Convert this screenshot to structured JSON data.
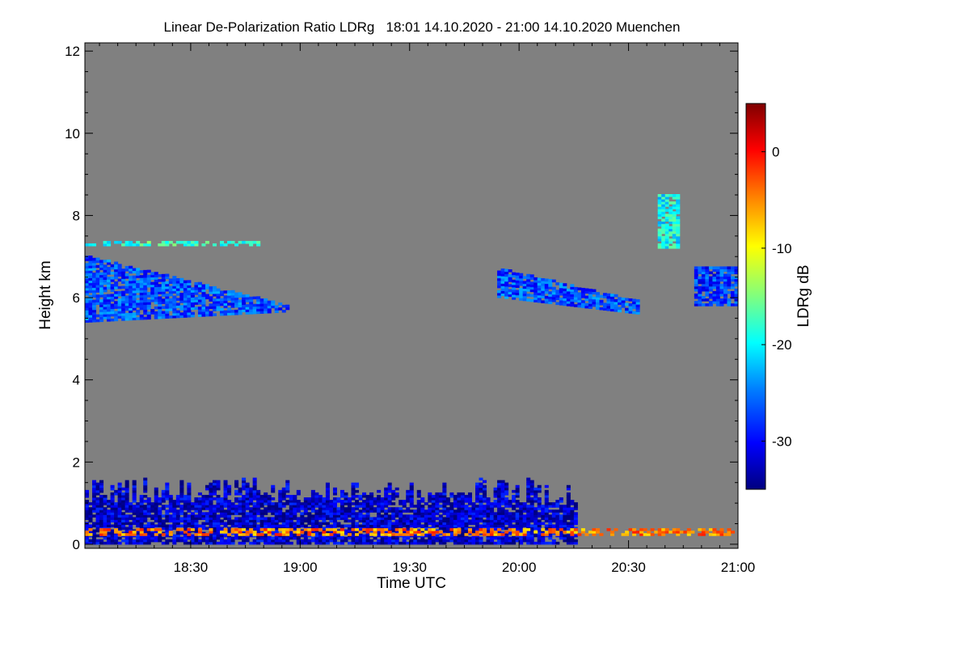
{
  "chart_data": {
    "type": "heatmap",
    "title": "Linear De-Polarization Ratio LDRg   18:01 14.10.2020 - 21:00 14.10.2020 Muenchen",
    "xlabel": "Time UTC",
    "ylabel": "Height km",
    "x_unit": "minutes since 18:00 UTC",
    "xlim": [
      1,
      180
    ],
    "ylim": [
      -0.1,
      12.2
    ],
    "x_ticks": [
      {
        "value": 30,
        "label": "18:30"
      },
      {
        "value": 60,
        "label": "19:00"
      },
      {
        "value": 90,
        "label": "19:30"
      },
      {
        "value": 120,
        "label": "20:00"
      },
      {
        "value": 150,
        "label": "20:30"
      },
      {
        "value": 180,
        "label": "21:00"
      }
    ],
    "y_ticks": [
      {
        "value": 0,
        "label": "0"
      },
      {
        "value": 2,
        "label": "2"
      },
      {
        "value": 4,
        "label": "4"
      },
      {
        "value": 6,
        "label": "6"
      },
      {
        "value": 8,
        "label": "8"
      },
      {
        "value": 10,
        "label": "10"
      },
      {
        "value": 12,
        "label": "12"
      }
    ],
    "background_color": "#808080",
    "colorbar": {
      "label": "LDRg dB",
      "range": [
        -35,
        5
      ],
      "ticks": [
        {
          "value": 0,
          "label": "0"
        },
        {
          "value": -10,
          "label": "-10"
        },
        {
          "value": -20,
          "label": "-20"
        },
        {
          "value": -30,
          "label": "-30"
        }
      ],
      "colors": [
        "#00007f",
        "#0000ff",
        "#007fff",
        "#00ffff",
        "#7fff7f",
        "#ffff00",
        "#ff7f00",
        "#ff0000",
        "#7f0000"
      ]
    },
    "regions": [
      {
        "name": "upper cloud layer (early)",
        "t": [
          1,
          56
        ],
        "h": [
          5.4,
          7.0
        ],
        "ldr_db": -27
      },
      {
        "name": "upper cloud layer (late)",
        "t": [
          114,
          152
        ],
        "h": [
          5.6,
          6.7
        ],
        "ldr_db": -27
      },
      {
        "name": "cloud fragment (end)",
        "t": [
          168,
          180
        ],
        "h": [
          5.8,
          6.7
        ],
        "ldr_db": -28
      },
      {
        "name": "isolated echoes",
        "t": [
          158,
          163
        ],
        "h": [
          7.2,
          8.5
        ],
        "ldr_db": -20
      },
      {
        "name": "thin layer near 7.3 km",
        "t": [
          1,
          48
        ],
        "h": [
          7.3,
          7.3
        ],
        "ldr_db": -18
      },
      {
        "name": "boundary layer echoes",
        "t": [
          1,
          135
        ],
        "h": [
          0.0,
          1.6
        ],
        "ldr_db": -32
      },
      {
        "name": "near-surface band",
        "t": [
          1,
          180
        ],
        "h": [
          0.25,
          0.3
        ],
        "ldr_db": -5
      }
    ]
  }
}
